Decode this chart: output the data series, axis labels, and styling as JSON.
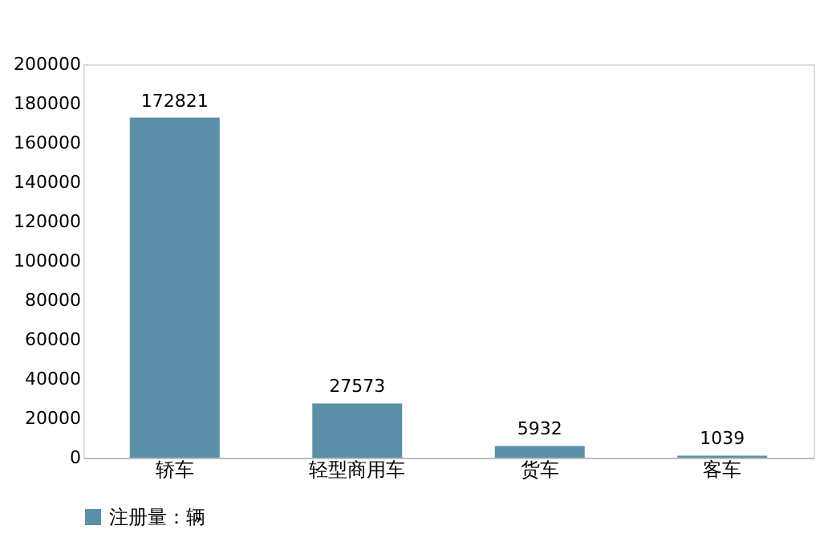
{
  "chart_data": {
    "type": "bar",
    "categories": [
      "轿车",
      "轻型商用车",
      "货车",
      "客车"
    ],
    "series": [
      {
        "name": "注册量：辆",
        "color": "#5b8fa8",
        "values": [
          172821,
          27573,
          5932,
          1039
        ]
      }
    ],
    "ylim": [
      0,
      200000
    ],
    "yticks": [
      0,
      20000,
      40000,
      60000,
      80000,
      100000,
      120000,
      140000,
      160000,
      180000,
      200000
    ],
    "grid": false,
    "legend": "bottom",
    "data_labels": true
  }
}
